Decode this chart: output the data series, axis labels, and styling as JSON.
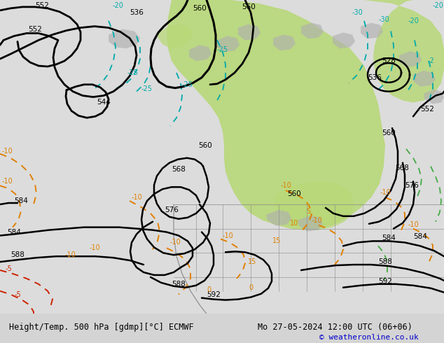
{
  "title_left": "Height/Temp. 500 hPa [gdmp][°C] ECMWF",
  "title_right": "Mo 27-05-2024 12:00 UTC (06+06)",
  "copyright": "© weatheronline.co.uk",
  "bg_color": "#d4d4d4",
  "map_bg": "#e0e0e0",
  "green_fill": "#b8d878",
  "gray_fill": "#b0b0b0",
  "black": "#000000",
  "orange": "#e08000",
  "red": "#cc2200",
  "cyan": "#00aaaa",
  "green_line": "#44aa44",
  "blue_text": "#0000cc",
  "footer_bg": "#c0c0c0",
  "title_fontsize": 8.5,
  "label_fontsize": 7.0
}
